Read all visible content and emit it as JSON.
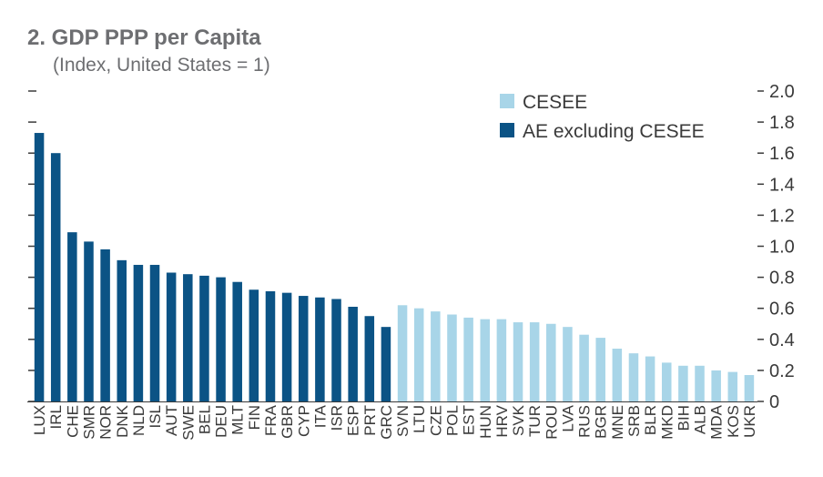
{
  "chart_data": {
    "type": "bar",
    "title": "2. GDP PPP per Capita",
    "subtitle": "(Index, United States = 1)",
    "xlabel": "",
    "ylabel": "",
    "ylim": [
      0,
      2.0
    ],
    "yticks": [
      0,
      0.2,
      0.4,
      0.6,
      0.8,
      1.0,
      1.2,
      1.4,
      1.6,
      1.8,
      2.0
    ],
    "ytick_labels": [
      "0",
      "0.2",
      "0.4",
      "0.6",
      "0.8",
      "1.0",
      "1.2",
      "1.4",
      "1.6",
      "1.8",
      "2.0"
    ],
    "grid": false,
    "legend_position": "top-right",
    "series": [
      {
        "name": "CESEE",
        "color": "#a8d5e8"
      },
      {
        "name": "AE excluding CESEE",
        "color": "#0b5385"
      }
    ],
    "categories": [
      "LUX",
      "IRL",
      "CHE",
      "SMR",
      "NOR",
      "DNK",
      "NLD",
      "ISL",
      "AUT",
      "SWE",
      "BEL",
      "DEU",
      "MLT",
      "FIN",
      "FRA",
      "GBR",
      "CYP",
      "ITA",
      "ISR",
      "ESP",
      "PRT",
      "GRC",
      "SVN",
      "LTU",
      "CZE",
      "POL",
      "EST",
      "HUN",
      "HRV",
      "SVK",
      "TUR",
      "ROU",
      "LVA",
      "RUS",
      "BGR",
      "MNE",
      "SRB",
      "BLR",
      "MKD",
      "BIH",
      "ALB",
      "MDA",
      "KOS",
      "UKR"
    ],
    "values": [
      1.73,
      1.6,
      1.09,
      1.03,
      0.98,
      0.91,
      0.88,
      0.88,
      0.83,
      0.82,
      0.81,
      0.8,
      0.77,
      0.72,
      0.71,
      0.7,
      0.68,
      0.67,
      0.66,
      0.61,
      0.55,
      0.48,
      0.62,
      0.6,
      0.58,
      0.56,
      0.54,
      0.53,
      0.53,
      0.51,
      0.51,
      0.5,
      0.48,
      0.43,
      0.41,
      0.34,
      0.31,
      0.29,
      0.25,
      0.23,
      0.23,
      0.2,
      0.19,
      0.17
    ],
    "groups": [
      "AE excluding CESEE",
      "AE excluding CESEE",
      "AE excluding CESEE",
      "AE excluding CESEE",
      "AE excluding CESEE",
      "AE excluding CESEE",
      "AE excluding CESEE",
      "AE excluding CESEE",
      "AE excluding CESEE",
      "AE excluding CESEE",
      "AE excluding CESEE",
      "AE excluding CESEE",
      "AE excluding CESEE",
      "AE excluding CESEE",
      "AE excluding CESEE",
      "AE excluding CESEE",
      "AE excluding CESEE",
      "AE excluding CESEE",
      "AE excluding CESEE",
      "AE excluding CESEE",
      "AE excluding CESEE",
      "AE excluding CESEE",
      "CESEE",
      "CESEE",
      "CESEE",
      "CESEE",
      "CESEE",
      "CESEE",
      "CESEE",
      "CESEE",
      "CESEE",
      "CESEE",
      "CESEE",
      "CESEE",
      "CESEE",
      "CESEE",
      "CESEE",
      "CESEE",
      "CESEE",
      "CESEE",
      "CESEE",
      "CESEE",
      "CESEE",
      "CESEE"
    ]
  }
}
